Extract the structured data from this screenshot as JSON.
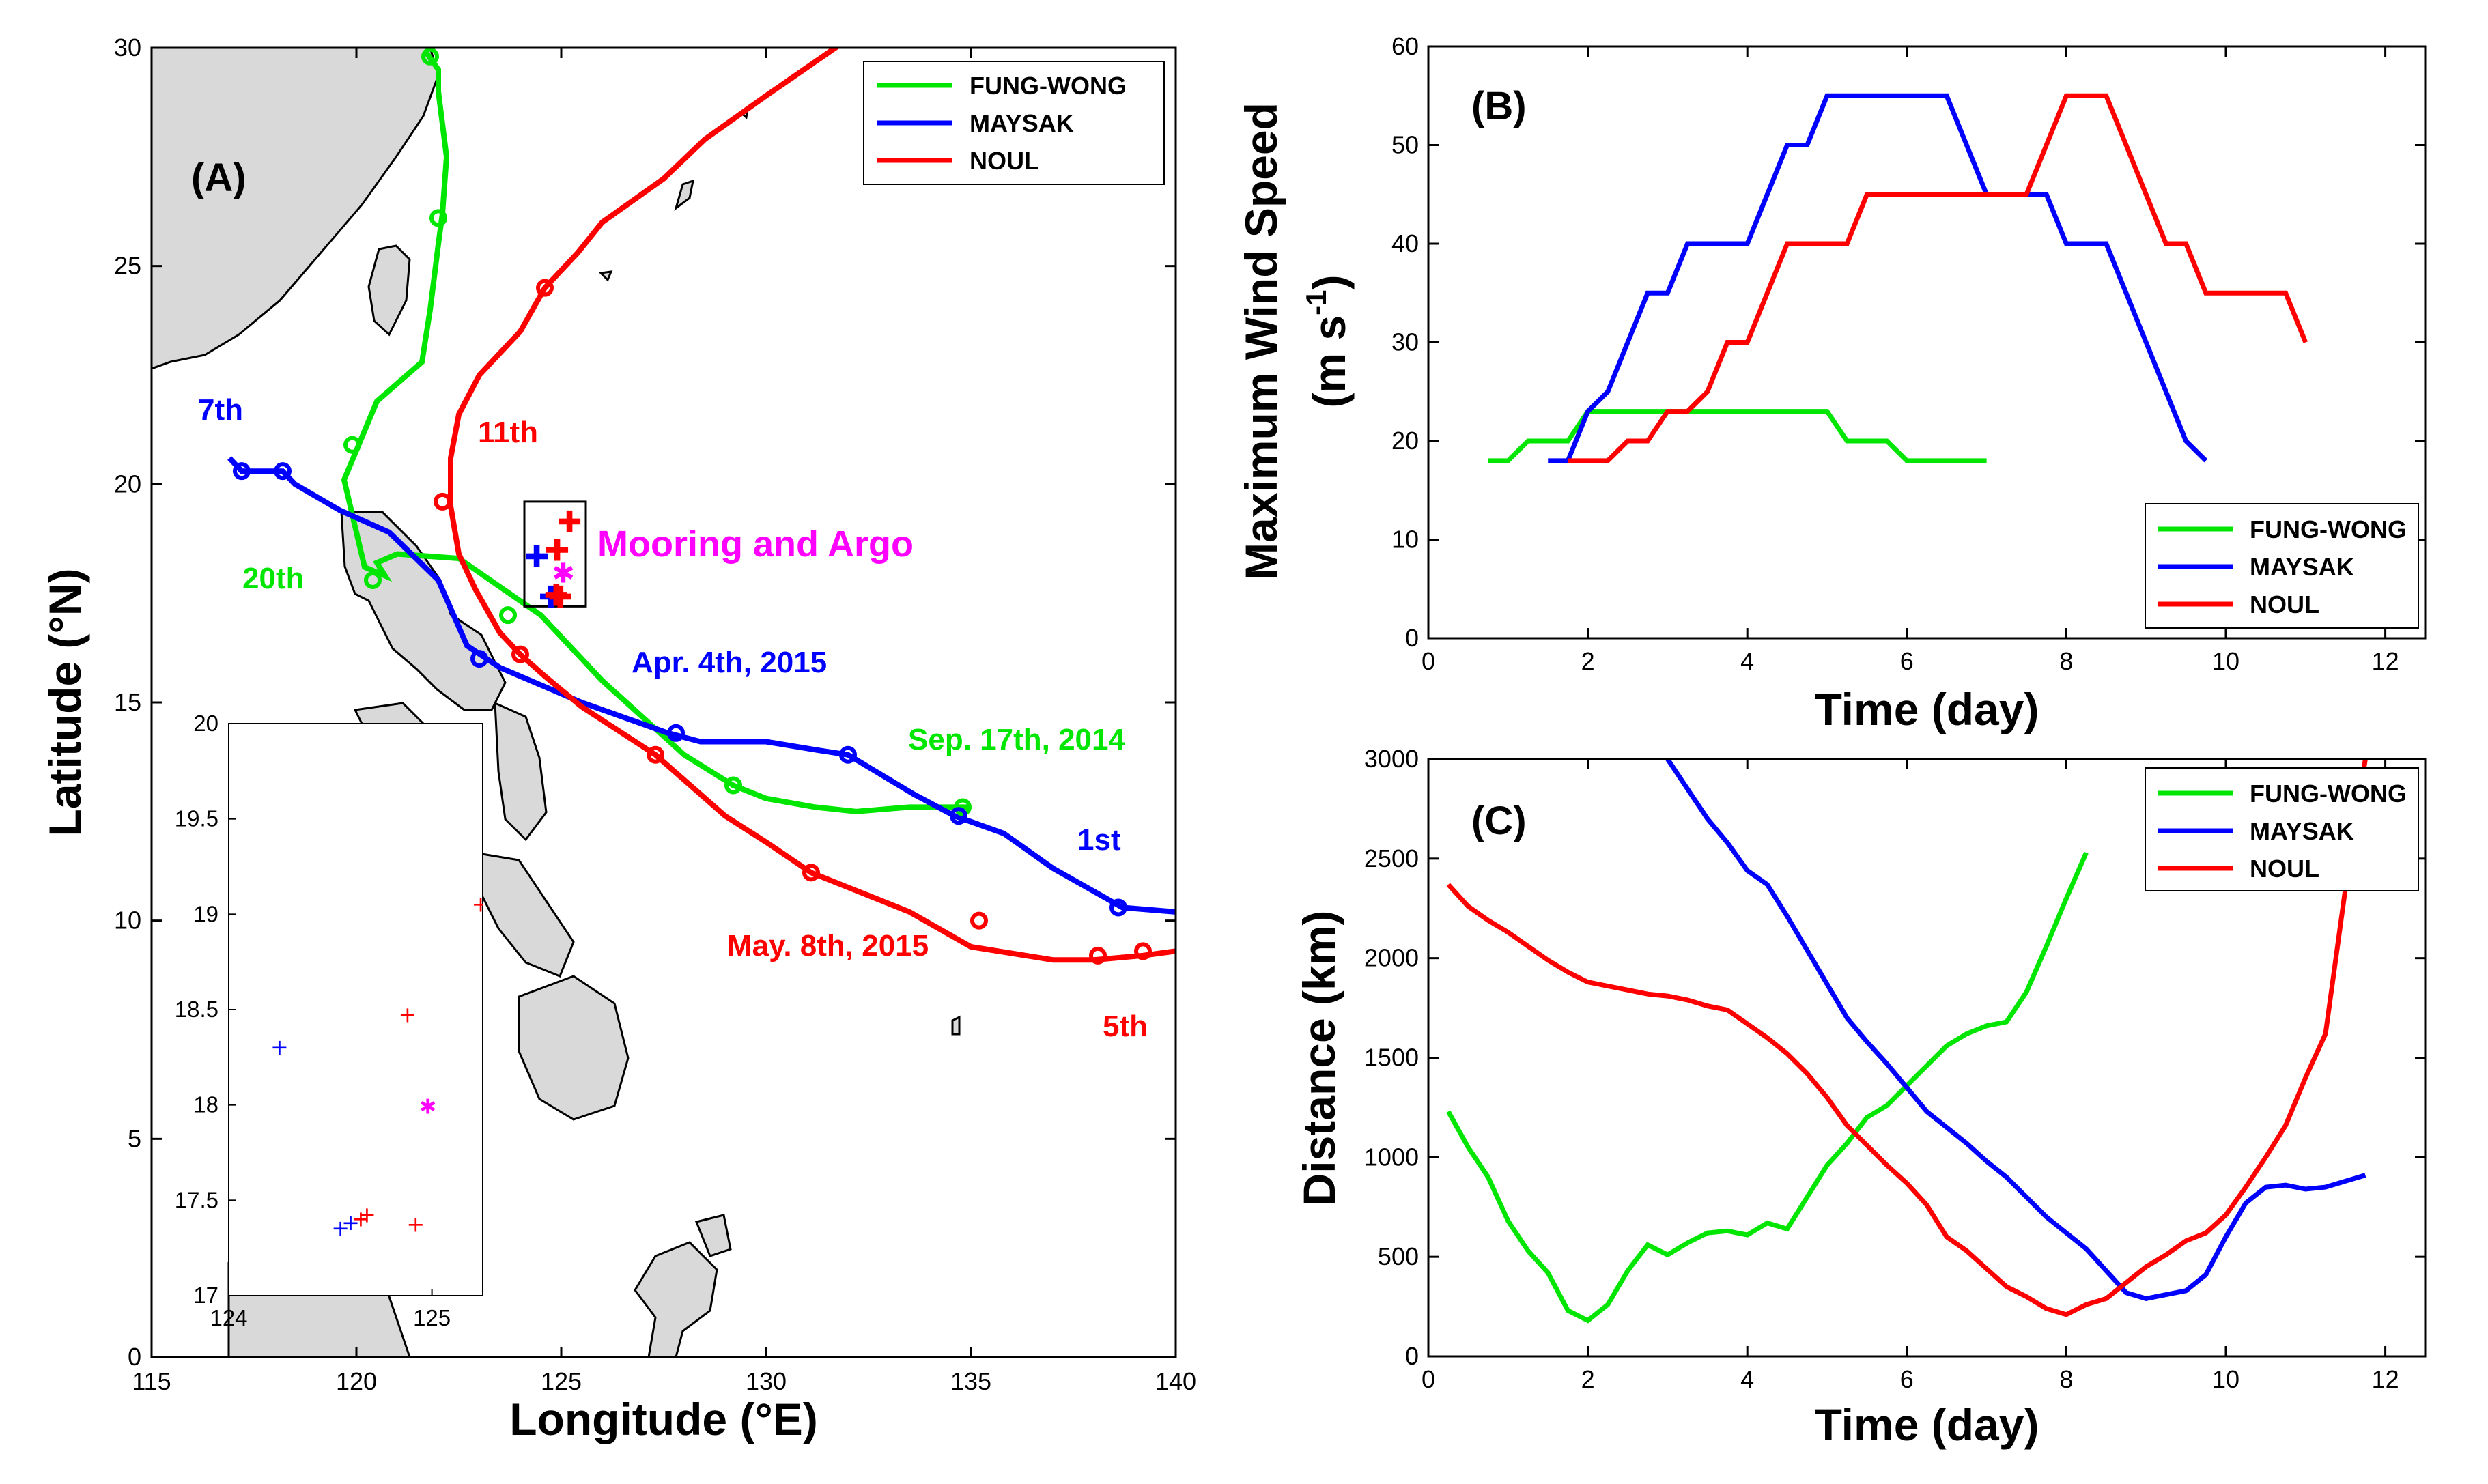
{
  "colors": {
    "FUNG-WONG": "#00e600",
    "MAYSAK": "#0000ff",
    "NOUL": "#ff0000",
    "mooring": "#ff00ff",
    "land": "#d9d9d9"
  },
  "chart_data": [
    {
      "id": "A",
      "type": "map",
      "panel_label": "(A)",
      "xlabel": "Longitude (°E)",
      "ylabel": "Latitude (°N)",
      "xlim": [
        115,
        140
      ],
      "ylim": [
        0,
        30
      ],
      "xticks": [
        115,
        120,
        125,
        130,
        135,
        140
      ],
      "yticks": [
        0,
        5,
        10,
        15,
        20,
        25,
        30
      ],
      "legend_position": "top-right",
      "legend": [
        "FUNG-WONG",
        "MAYSAK",
        "NOUL"
      ],
      "series": [
        {
          "name": "FUNG-WONG",
          "lon": [
            135.0,
            133.5,
            132.2,
            131.2,
            130.0,
            129.2,
            128.0,
            126.0,
            124.5,
            122.5,
            121.0,
            120.5,
            120.7,
            120.2,
            119.7,
            120.1,
            120.5,
            121.6,
            121.8,
            122.0,
            122.1,
            122.2,
            122.0,
            122.0,
            121.7
          ],
          "lat": [
            12.6,
            12.6,
            12.5,
            12.6,
            12.8,
            13.1,
            13.8,
            15.5,
            17.0,
            18.3,
            18.4,
            18.2,
            17.9,
            18.1,
            20.1,
            21.0,
            21.9,
            22.8,
            24.0,
            25.5,
            26.2,
            27.5,
            29.0,
            29.5,
            29.9
          ],
          "markers_lon": [
            134.8,
            129.2,
            123.7,
            120.4,
            119.9,
            122.0,
            121.8
          ],
          "markers_lat": [
            12.6,
            13.1,
            17.0,
            17.8,
            20.9,
            26.1,
            29.8
          ]
        },
        {
          "name": "MAYSAK",
          "lon": [
            140.0,
            138.7,
            137.0,
            135.8,
            134.6,
            133.6,
            132.0,
            131.3,
            130.0,
            128.4,
            127.6,
            125.5,
            123.5,
            122.7,
            122.0,
            120.8,
            119.6,
            118.5,
            118.2,
            117.2,
            116.9
          ],
          "lat": [
            10.2,
            10.3,
            11.2,
            12.0,
            12.4,
            12.9,
            13.8,
            13.9,
            14.1,
            14.1,
            14.3,
            15.0,
            15.8,
            16.3,
            17.8,
            18.9,
            19.4,
            20.0,
            20.3,
            20.3,
            20.6
          ],
          "markers_lon": [
            138.6,
            134.7,
            132.0,
            127.8,
            123.0,
            118.2,
            117.2
          ],
          "markers_lat": [
            10.3,
            12.4,
            13.8,
            14.3,
            16.0,
            20.3,
            20.3
          ]
        },
        {
          "name": "NOUL",
          "lon": [
            140.0,
            139.2,
            138.0,
            137.0,
            135.0,
            133.5,
            131.1,
            130.0,
            129.0,
            127.3,
            125.5,
            124.6,
            124.0,
            123.5,
            122.9,
            122.5,
            122.3,
            122.3,
            122.5,
            123.0,
            124.0,
            124.6,
            125.4,
            126.0,
            127.5,
            128.5,
            130.0,
            132.0,
            134.0,
            136.0
          ],
          "lat": [
            9.3,
            9.2,
            9.1,
            9.1,
            9.4,
            10.2,
            11.1,
            11.8,
            12.4,
            13.8,
            14.9,
            15.6,
            16.1,
            16.6,
            17.6,
            18.4,
            19.5,
            20.6,
            21.6,
            22.5,
            23.5,
            24.5,
            25.3,
            26.0,
            27.0,
            27.9,
            28.9,
            30.2,
            31.5,
            32.7
          ],
          "markers_lon": [
            139.2,
            138.1,
            135.2,
            131.1,
            127.3,
            124.0,
            122.1,
            124.6
          ],
          "markers_lat": [
            9.3,
            9.2,
            10.0,
            11.1,
            13.8,
            16.1,
            19.6,
            24.5
          ]
        }
      ],
      "annotations": [
        {
          "text": "7th",
          "color": "MAYSAK"
        },
        {
          "text": "11th",
          "color": "NOUL"
        },
        {
          "text": "Mooring and Argo",
          "color": "mooring"
        },
        {
          "text": "20th",
          "color": "FUNG-WONG"
        },
        {
          "text": "Apr. 4th, 2015",
          "color": "MAYSAK"
        },
        {
          "text": "Sep. 17th, 2014",
          "color": "FUNG-WONG"
        },
        {
          "text": "1st",
          "color": "MAYSAK"
        },
        {
          "text": "May. 8th, 2015",
          "color": "NOUL"
        },
        {
          "text": "5th",
          "color": "NOUL"
        }
      ],
      "stations_box": {
        "lon": [
          124.1,
          125.6
        ],
        "lat": [
          17.2,
          19.6
        ]
      },
      "stations": [
        {
          "lon": 125.2,
          "lat": 19.1,
          "color": "NOUL",
          "symbol": "+"
        },
        {
          "lon": 124.4,
          "lat": 18.3,
          "color": "MAYSAK",
          "symbol": "+"
        },
        {
          "lon": 124.9,
          "lat": 18.45,
          "color": "NOUL",
          "symbol": "+"
        },
        {
          "lon": 125.05,
          "lat": 17.95,
          "color": "mooring",
          "symbol": "*"
        },
        {
          "lon": 124.75,
          "lat": 17.38,
          "color": "MAYSAK",
          "symbol": "+"
        },
        {
          "lon": 124.88,
          "lat": 17.42,
          "color": "NOUL",
          "symbol": "+"
        },
        {
          "lon": 124.98,
          "lat": 17.38,
          "color": "NOUL",
          "symbol": "+"
        }
      ]
    },
    {
      "id": "A-inset",
      "type": "scatter",
      "xlim": [
        124,
        125.25
      ],
      "ylim": [
        17,
        20
      ],
      "xticks": [
        124,
        125
      ],
      "yticks": [
        17,
        17.5,
        18,
        18.5,
        19,
        19.5,
        20
      ],
      "points": [
        {
          "x": 125.24,
          "y": 19.05,
          "color": "NOUL",
          "symbol": "+"
        },
        {
          "x": 124.88,
          "y": 18.47,
          "color": "NOUL",
          "symbol": "+"
        },
        {
          "x": 124.25,
          "y": 18.3,
          "color": "MAYSAK",
          "symbol": "+"
        },
        {
          "x": 124.98,
          "y": 17.99,
          "color": "mooring",
          "symbol": "*"
        },
        {
          "x": 124.68,
          "y": 17.42,
          "color": "NOUL",
          "symbol": "+"
        },
        {
          "x": 124.65,
          "y": 17.4,
          "color": "NOUL",
          "symbol": "+"
        },
        {
          "x": 124.6,
          "y": 17.38,
          "color": "MAYSAK",
          "symbol": "+"
        },
        {
          "x": 124.55,
          "y": 17.35,
          "color": "MAYSAK",
          "symbol": "+"
        },
        {
          "x": 124.92,
          "y": 17.37,
          "color": "NOUL",
          "symbol": "+"
        }
      ]
    },
    {
      "id": "B",
      "type": "line",
      "panel_label": "(B)",
      "xlabel": "Time (day)",
      "ylabel": "Maximum Wind Speed",
      "ylabel_units": [
        "(m s",
        "-1",
        ")"
      ],
      "xlim": [
        0,
        12.5
      ],
      "ylim": [
        0,
        60
      ],
      "xticks": [
        0,
        2,
        4,
        6,
        8,
        10,
        12
      ],
      "yticks": [
        0,
        10,
        20,
        30,
        40,
        50,
        60
      ],
      "legend_position": "bottom-right",
      "series": [
        {
          "name": "FUNG-WONG",
          "x": [
            0.75,
            1.0,
            1.25,
            1.5,
            1.75,
            2.0,
            2.25,
            2.5,
            2.75,
            3.0,
            3.25,
            3.5,
            3.75,
            4.0,
            4.25,
            4.5,
            4.75,
            5.0,
            5.25,
            5.5,
            5.75,
            6.0,
            6.25,
            6.5,
            6.75,
            7.0
          ],
          "y": [
            18,
            18,
            20,
            20,
            20,
            23,
            23,
            23,
            23,
            23,
            23,
            23,
            23,
            23,
            23,
            23,
            23,
            23,
            20,
            20,
            20,
            18,
            18,
            18,
            18,
            18
          ]
        },
        {
          "name": "MAYSAK",
          "x": [
            1.5,
            1.75,
            2.0,
            2.25,
            2.5,
            2.75,
            3.0,
            3.25,
            3.5,
            3.75,
            4.0,
            4.25,
            4.5,
            4.75,
            5.0,
            5.25,
            5.5,
            5.75,
            6.0,
            6.25,
            6.5,
            6.75,
            7.0,
            7.25,
            7.5,
            7.75,
            8.0,
            8.25,
            8.5,
            8.75,
            9.0,
            9.25,
            9.5,
            9.75
          ],
          "y": [
            18,
            18,
            23,
            25,
            30,
            35,
            35,
            40,
            40,
            40,
            40,
            45,
            50,
            50,
            55,
            55,
            55,
            55,
            55,
            55,
            55,
            50,
            45,
            45,
            45,
            45,
            40,
            40,
            40,
            35,
            30,
            25,
            20,
            18
          ]
        },
        {
          "name": "NOUL",
          "x": [
            1.75,
            2.0,
            2.25,
            2.5,
            2.75,
            3.0,
            3.25,
            3.5,
            3.75,
            4.0,
            4.25,
            4.5,
            4.75,
            5.0,
            5.25,
            5.5,
            5.75,
            6.0,
            6.25,
            6.5,
            6.75,
            7.0,
            7.25,
            7.5,
            7.75,
            8.0,
            8.25,
            8.5,
            8.75,
            9.0,
            9.25,
            9.5,
            9.75,
            10.0,
            10.25,
            10.5,
            10.75,
            11.0
          ],
          "y": [
            18,
            18,
            18,
            20,
            20,
            23,
            23,
            25,
            30,
            30,
            35,
            40,
            40,
            40,
            40,
            45,
            45,
            45,
            45,
            45,
            45,
            45,
            45,
            45,
            50,
            55,
            55,
            55,
            50,
            45,
            40,
            40,
            35,
            35,
            35,
            35,
            35,
            30
          ]
        }
      ]
    },
    {
      "id": "C",
      "type": "line",
      "panel_label": "(C)",
      "xlabel": "Time (day)",
      "ylabel": "Distance (km)",
      "xlim": [
        0,
        12.5
      ],
      "ylim": [
        0,
        3000
      ],
      "xticks": [
        0,
        2,
        4,
        6,
        8,
        10,
        12
      ],
      "yticks": [
        0,
        500,
        1000,
        1500,
        2000,
        2500,
        3000
      ],
      "legend_position": "top-right",
      "series": [
        {
          "name": "FUNG-WONG",
          "x": [
            0.25,
            0.5,
            0.75,
            1.0,
            1.25,
            1.5,
            1.75,
            2.0,
            2.25,
            2.5,
            2.75,
            3.0,
            3.25,
            3.5,
            3.75,
            4.0,
            4.25,
            4.5,
            4.75,
            5.0,
            5.25,
            5.5,
            5.75,
            6.0,
            6.25,
            6.5,
            6.75,
            7.0,
            7.25,
            7.5,
            7.75,
            8.0,
            8.25
          ],
          "y": [
            1230,
            1050,
            900,
            680,
            530,
            420,
            230,
            180,
            260,
            430,
            560,
            510,
            570,
            620,
            630,
            610,
            670,
            640,
            800,
            960,
            1070,
            1200,
            1260,
            1360,
            1460,
            1560,
            1620,
            1660,
            1680,
            1830,
            2060,
            2300,
            2530
          ]
        },
        {
          "name": "MAYSAK",
          "x": [
            3.0,
            3.25,
            3.5,
            3.75,
            4.0,
            4.25,
            4.5,
            4.75,
            5.0,
            5.25,
            5.5,
            5.75,
            6.0,
            6.25,
            6.5,
            6.75,
            7.0,
            7.25,
            7.5,
            7.75,
            8.0,
            8.25,
            8.5,
            8.75,
            9.0,
            9.25,
            9.5,
            9.75,
            10.0,
            10.25,
            10.5,
            10.75,
            11.0,
            11.25,
            11.5,
            11.75
          ],
          "y": [
            3000,
            2850,
            2700,
            2580,
            2440,
            2370,
            2210,
            2040,
            1870,
            1700,
            1580,
            1470,
            1350,
            1230,
            1150,
            1070,
            980,
            900,
            800,
            700,
            620,
            540,
            430,
            320,
            290,
            310,
            330,
            410,
            600,
            770,
            850,
            860,
            840,
            850,
            880,
            910
          ]
        },
        {
          "name": "NOUL",
          "x": [
            0.25,
            0.5,
            0.75,
            1.0,
            1.25,
            1.5,
            1.75,
            2.0,
            2.25,
            2.5,
            2.75,
            3.0,
            3.25,
            3.5,
            3.75,
            4.0,
            4.25,
            4.5,
            4.75,
            5.0,
            5.25,
            5.5,
            5.75,
            6.0,
            6.25,
            6.5,
            6.75,
            7.0,
            7.25,
            7.5,
            7.75,
            8.0,
            8.25,
            8.5,
            8.75,
            9.0,
            9.25,
            9.5,
            9.75,
            10.0,
            10.25,
            10.5,
            10.75,
            11.0,
            11.25,
            11.5,
            11.75
          ],
          "y": [
            2370,
            2260,
            2190,
            2130,
            2060,
            1990,
            1930,
            1880,
            1860,
            1840,
            1820,
            1810,
            1790,
            1760,
            1740,
            1670,
            1600,
            1520,
            1420,
            1300,
            1160,
            1060,
            960,
            870,
            760,
            600,
            530,
            440,
            350,
            300,
            240,
            210,
            260,
            290,
            370,
            450,
            510,
            580,
            620,
            710,
            850,
            1000,
            1160,
            1400,
            1620,
            2350,
            3000
          ]
        }
      ]
    }
  ]
}
